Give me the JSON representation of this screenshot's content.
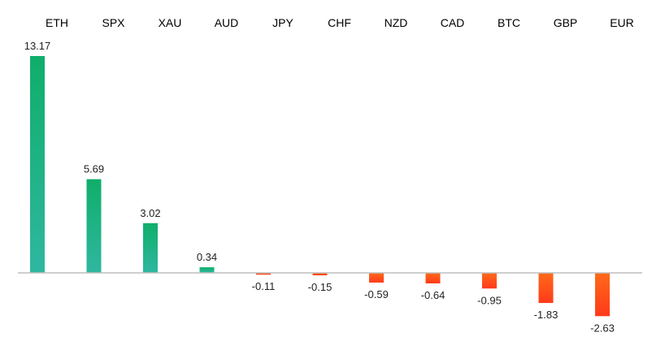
{
  "chart_data": {
    "type": "bar",
    "title": "",
    "xlabel": "",
    "ylabel": "",
    "categories": [
      "ETH",
      "SPX",
      "XAU",
      "AUD",
      "JPY",
      "CHF",
      "NZD",
      "CAD",
      "BTC",
      "GBP",
      "EUR"
    ],
    "values": [
      13.17,
      5.69,
      3.02,
      0.34,
      -0.11,
      -0.15,
      -0.59,
      -0.64,
      -0.95,
      -1.83,
      -2.63
    ],
    "value_labels": [
      "13.17",
      "5.69",
      "3.02",
      "0.34",
      "-0.11",
      "-0.15",
      "-0.59",
      "-0.64",
      "-0.95",
      "-1.83",
      "-2.63"
    ],
    "ylim": [
      -2.63,
      13.17
    ],
    "grid": false,
    "legend": "none",
    "category_label_position": "top",
    "colors": {
      "positive_top": "#0fae6a",
      "positive_bottom": "#2fb7a0",
      "negative_top": "#ff6a1a",
      "negative_bottom": "#ff3a1a",
      "axis": "#bfbfbf"
    }
  }
}
